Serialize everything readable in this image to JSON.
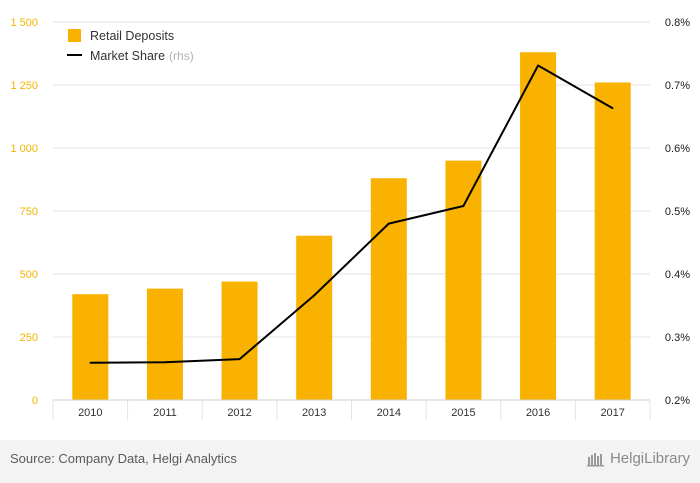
{
  "chart_data": {
    "type": "bar",
    "categories": [
      "2010",
      "2011",
      "2012",
      "2013",
      "2014",
      "2015",
      "2016",
      "2017"
    ],
    "series": [
      {
        "name": "Retail Deposits",
        "type": "bar",
        "axis": "left",
        "color": "#f9b200",
        "values": [
          420,
          442,
          470,
          652,
          880,
          950,
          1380,
          1260
        ]
      },
      {
        "name": "Market Share",
        "legend_suffix": "(rhs)",
        "type": "line",
        "axis": "right",
        "color": "#000000",
        "values": [
          0.259,
          0.26,
          0.265,
          0.366,
          0.48,
          0.508,
          0.731,
          0.663
        ]
      }
    ],
    "y_left": {
      "lim": [
        0,
        1500
      ],
      "ticks": [
        0,
        250,
        500,
        750,
        1000,
        1250,
        1500
      ],
      "tick_labels": [
        "0",
        "250",
        "500",
        "750",
        "1 000",
        "1 250",
        "1 500"
      ],
      "color": "#f4b400"
    },
    "y_right": {
      "lim": [
        0.2,
        0.8
      ],
      "ticks": [
        0.2,
        0.3,
        0.4,
        0.5,
        0.6,
        0.7,
        0.8
      ],
      "tick_labels": [
        "0.2%",
        "0.3%",
        "0.4%",
        "0.5%",
        "0.6%",
        "0.7%",
        "0.8%"
      ]
    },
    "grid": true,
    "legend_position": "top-left"
  },
  "footer": {
    "source": "Source: Company Data, Helgi Analytics",
    "brand": "HelgiLibrary"
  }
}
